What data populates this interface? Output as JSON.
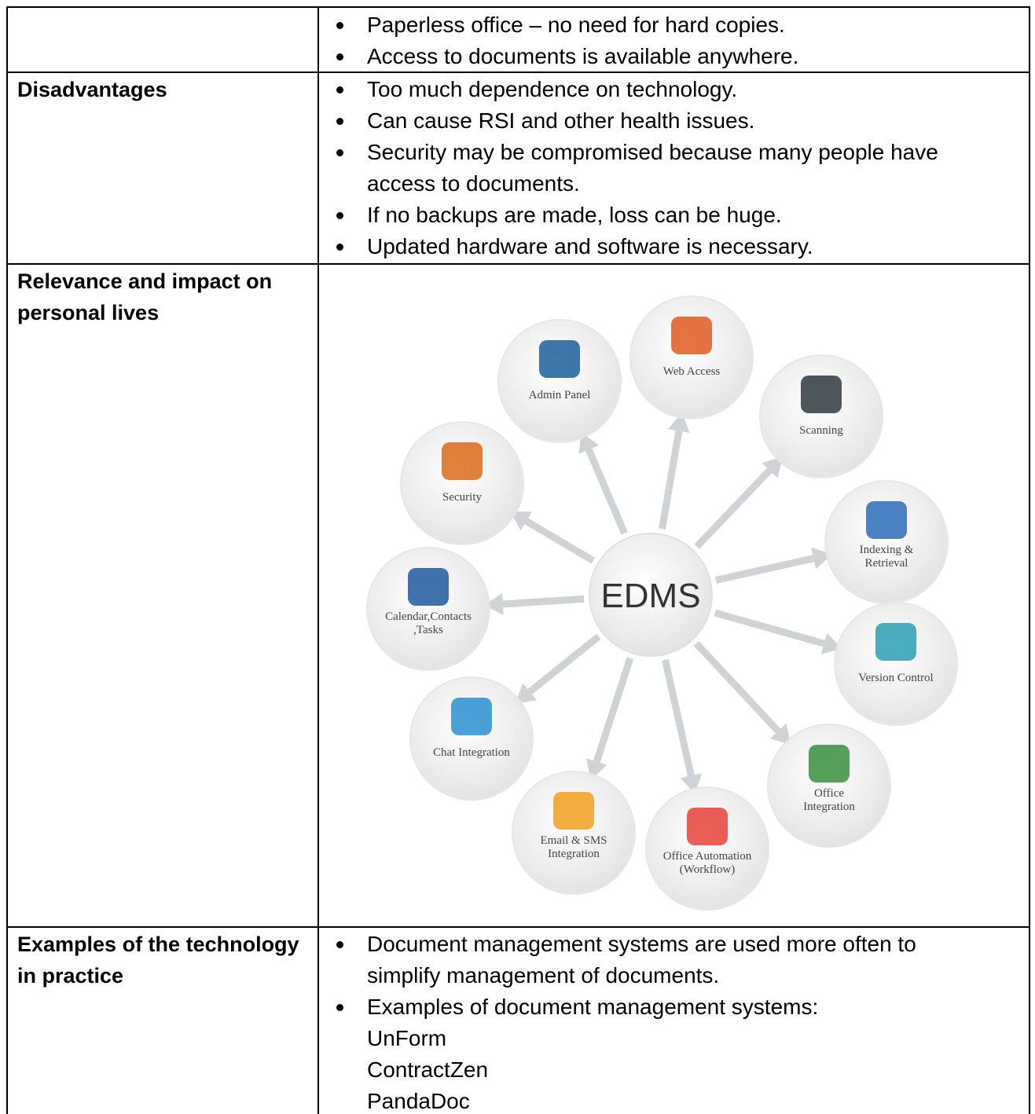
{
  "table": {
    "rows": [
      {
        "bullets": [
          [
            "Paperless office – no need for hard copies."
          ],
          [
            "Access to documents is available anywhere."
          ]
        ]
      },
      {
        "label": "Disadvantages",
        "bullets": [
          [
            "Too much dependence on technology."
          ],
          [
            "Can cause RSI and other health issues."
          ],
          [
            "Security may be compromised because many people have access to documents."
          ],
          [
            "If no backups are made, loss can be huge."
          ],
          [
            "Updated hardware and software is necessary."
          ]
        ]
      },
      {
        "label": "Relevance and impact on personal lives",
        "diagram": {
          "center": "EDMS",
          "nodes": [
            {
              "label": [
                "Web Access"
              ]
            },
            {
              "label": [
                "Scanning"
              ]
            },
            {
              "label": [
                "Indexing &",
                "Retrieval"
              ]
            },
            {
              "label": [
                "Version Control"
              ]
            },
            {
              "label": [
                "Office",
                "Integration"
              ]
            },
            {
              "label": [
                "Office Automation",
                "(Workflow)"
              ]
            },
            {
              "label": [
                "Email & SMS",
                "Integration"
              ]
            },
            {
              "label": [
                "Chat Integration"
              ]
            },
            {
              "label": [
                "Calendar,Contacts",
                ",Tasks"
              ]
            },
            {
              "label": [
                "Security"
              ]
            },
            {
              "label": [
                "Admin Panel"
              ]
            }
          ]
        }
      },
      {
        "label": "Examples of the technology in practice",
        "bullets": [
          [
            "Document management systems are used more often to simplify management of documents."
          ],
          [
            "Examples of document management systems:",
            "UnForm",
            "ContractZen",
            "PandaDoc"
          ]
        ]
      }
    ]
  }
}
